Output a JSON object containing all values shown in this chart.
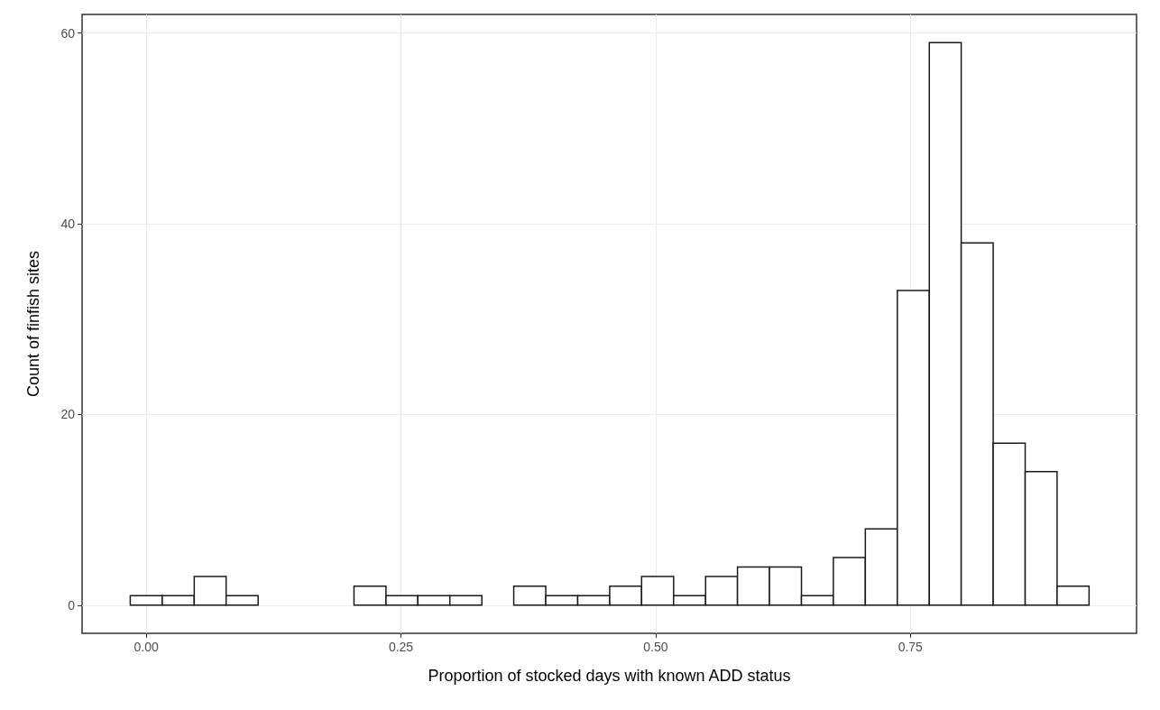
{
  "chart_data": {
    "type": "histogram",
    "xlabel": "Proportion of stocked days with known ADD status",
    "ylabel": "Count of finfish sites",
    "bins": [
      -0.0157,
      0.0157,
      0.0471,
      0.0784,
      0.1098,
      0.1412,
      0.1725,
      0.2039,
      0.2353,
      0.2666,
      0.298,
      0.3294,
      0.3607,
      0.3921,
      0.4235,
      0.4549,
      0.4862,
      0.5176,
      0.549,
      0.5803,
      0.6117,
      0.6431,
      0.6744,
      0.7058,
      0.7372,
      0.7686,
      0.7999,
      0.8313,
      0.8627,
      0.894,
      0.9254
    ],
    "values": [
      1,
      1,
      3,
      1,
      0,
      0,
      0,
      2,
      1,
      1,
      1,
      0,
      2,
      1,
      1,
      2,
      3,
      1,
      3,
      4,
      4,
      1,
      5,
      8,
      33,
      59,
      38,
      17,
      14,
      2
    ],
    "color": "#ffffff",
    "xlim": [
      -0.063,
      0.972
    ],
    "xticks": [
      {
        "value": 0,
        "label": "0.00"
      },
      0.25,
      {
        "value": 0.5,
        "label": "0.50"
      },
      0.75
    ],
    "ylim": [
      -2.95,
      61.95
    ],
    "yticks": [
      0,
      20,
      40,
      60
    ],
    "grid": true
  }
}
